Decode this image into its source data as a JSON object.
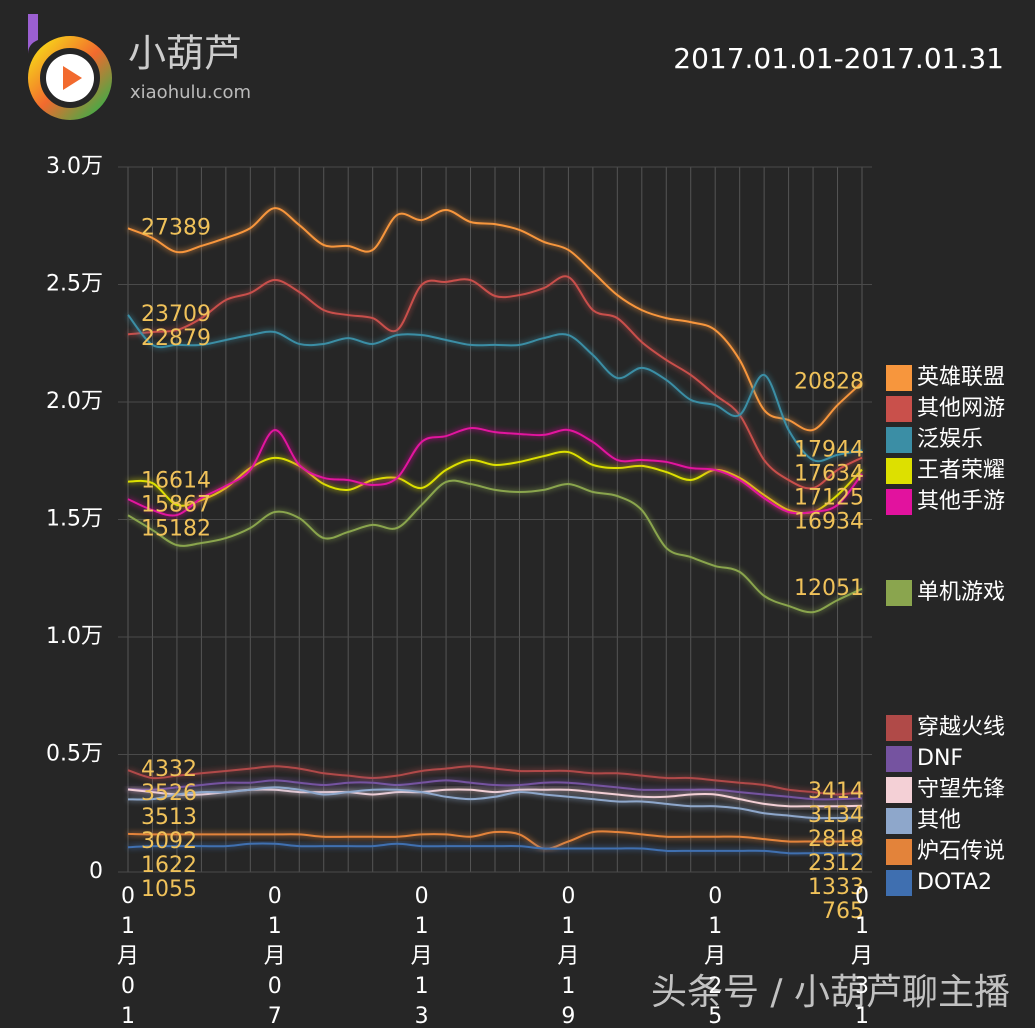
{
  "header": {
    "brand": "小葫芦",
    "site": "xiaohulu.com",
    "date_range": "2017.01.01-2017.01.31"
  },
  "watermark": "头条号 / 小葫芦聊主播",
  "chart_data": {
    "type": "line",
    "categories": [
      "01月01日",
      null,
      null,
      null,
      null,
      null,
      "01月07日",
      null,
      null,
      null,
      null,
      null,
      "01月13日",
      null,
      null,
      null,
      null,
      null,
      "01月19日",
      null,
      null,
      null,
      null,
      null,
      "01月25日",
      null,
      null,
      null,
      null,
      null,
      "01月31日"
    ],
    "ylim": [
      0,
      30000
    ],
    "yticks": [
      0,
      {
        "value": 5000,
        "label": "0.5万"
      },
      {
        "value": 10000,
        "label": "1.0万"
      },
      {
        "value": 15000,
        "label": "1.5万"
      },
      {
        "value": 20000,
        "label": "2.0万"
      },
      {
        "value": 25000,
        "label": "2.5万"
      },
      {
        "value": 30000,
        "label": "3.0万"
      }
    ],
    "grid": true,
    "series": [
      {
        "name": "英雄联盟",
        "color": "#f7963d",
        "values": [
          27389,
          26980,
          26380,
          26640,
          26980,
          27400,
          28250,
          27530,
          26680,
          26640,
          26470,
          27960,
          27740,
          28170,
          27660,
          27570,
          27320,
          26810,
          26470,
          25530,
          24550,
          23910,
          23570,
          23400,
          23060,
          21790,
          19660,
          19230,
          18810,
          19870,
          20828
        ]
      },
      {
        "name": "其他网游",
        "color": "#c9504b",
        "values": [
          22879,
          22980,
          23060,
          23570,
          24340,
          24640,
          25190,
          24680,
          23910,
          23700,
          23570,
          23060,
          24980,
          25110,
          25190,
          24510,
          24550,
          24850,
          25320,
          23910,
          23570,
          22550,
          21790,
          21150,
          20300,
          19450,
          17530,
          16680,
          16340,
          17110,
          17634
        ]
      },
      {
        "name": "泛娱乐",
        "color": "#3b8ea5",
        "values": [
          23709,
          22430,
          22430,
          22430,
          22640,
          22850,
          22980,
          22470,
          22470,
          22720,
          22470,
          22850,
          22850,
          22640,
          22430,
          22430,
          22430,
          22720,
          22850,
          22000,
          21020,
          21450,
          20940,
          20090,
          19870,
          19450,
          21150,
          18810,
          17530,
          17750,
          17944
        ]
      },
      {
        "name": "王者荣耀",
        "color": "#dde000",
        "values": [
          16614,
          16550,
          15620,
          15830,
          16340,
          17190,
          17620,
          17280,
          16510,
          16260,
          16680,
          16770,
          16340,
          17110,
          17530,
          17320,
          17450,
          17700,
          17870,
          17320,
          17190,
          17280,
          17020,
          16680,
          17110,
          16770,
          16040,
          15400,
          15320,
          16040,
          17125
        ]
      },
      {
        "name": "其他手游",
        "color": "#e2129e",
        "values": [
          15867,
          15400,
          15190,
          15910,
          16430,
          17110,
          18810,
          17320,
          16770,
          16680,
          16470,
          16770,
          18300,
          18550,
          18890,
          18720,
          18640,
          18600,
          18810,
          18300,
          17530,
          17530,
          17450,
          17190,
          17110,
          16680,
          15910,
          15320,
          15320,
          15620,
          16934
        ]
      },
      {
        "name": "单机游戏",
        "color": "#8aa54e",
        "values": [
          15182,
          14550,
          13910,
          14000,
          14210,
          14640,
          15320,
          15060,
          14210,
          14470,
          14770,
          14640,
          15620,
          16600,
          16510,
          16260,
          16170,
          16260,
          16510,
          16170,
          16000,
          15400,
          13790,
          13400,
          13020,
          12770,
          11750,
          11320,
          11060,
          11570,
          12051
        ]
      },
      {
        "name": "穿越火线",
        "color": "#b04a48",
        "values": [
          4332,
          4000,
          4100,
          4200,
          4300,
          4400,
          4500,
          4400,
          4200,
          4100,
          4000,
          4100,
          4300,
          4400,
          4500,
          4400,
          4300,
          4300,
          4300,
          4200,
          4200,
          4100,
          4000,
          4000,
          3900,
          3800,
          3700,
          3500,
          3400,
          3300,
          3414
        ]
      },
      {
        "name": "DNF",
        "color": "#7553a0",
        "values": [
          3526,
          3500,
          3600,
          3700,
          3800,
          3800,
          3900,
          3800,
          3700,
          3800,
          3800,
          3700,
          3800,
          3900,
          3800,
          3700,
          3700,
          3800,
          3800,
          3700,
          3600,
          3500,
          3500,
          3500,
          3500,
          3400,
          3300,
          3200,
          3100,
          3100,
          3134
        ]
      },
      {
        "name": "守望先锋",
        "color": "#f4d0d6",
        "values": [
          3513,
          3400,
          3300,
          3300,
          3400,
          3500,
          3500,
          3400,
          3400,
          3400,
          3300,
          3400,
          3400,
          3500,
          3500,
          3400,
          3500,
          3500,
          3500,
          3400,
          3300,
          3200,
          3200,
          3300,
          3300,
          3100,
          2900,
          2800,
          2800,
          2800,
          2818
        ]
      },
      {
        "name": "其他",
        "color": "#8ea7cb",
        "values": [
          3092,
          3100,
          3300,
          3400,
          3400,
          3500,
          3600,
          3500,
          3300,
          3400,
          3500,
          3500,
          3400,
          3200,
          3100,
          3200,
          3400,
          3300,
          3200,
          3100,
          3000,
          3000,
          2900,
          2800,
          2800,
          2700,
          2500,
          2400,
          2300,
          2300,
          2312
        ]
      },
      {
        "name": "炉石传说",
        "color": "#e3833a",
        "values": [
          1622,
          1600,
          1600,
          1600,
          1600,
          1600,
          1600,
          1600,
          1500,
          1500,
          1500,
          1500,
          1600,
          1600,
          1500,
          1700,
          1600,
          1000,
          1300,
          1700,
          1700,
          1600,
          1500,
          1500,
          1500,
          1500,
          1400,
          1300,
          1300,
          1300,
          1333
        ]
      },
      {
        "name": "DOTA2",
        "color": "#3f6fb0",
        "values": [
          1055,
          1100,
          1100,
          1100,
          1100,
          1200,
          1200,
          1100,
          1100,
          1100,
          1100,
          1200,
          1100,
          1100,
          1100,
          1100,
          1100,
          1000,
          1000,
          1000,
          1000,
          1000,
          900,
          900,
          900,
          900,
          900,
          800,
          800,
          800,
          765
        ]
      }
    ]
  }
}
